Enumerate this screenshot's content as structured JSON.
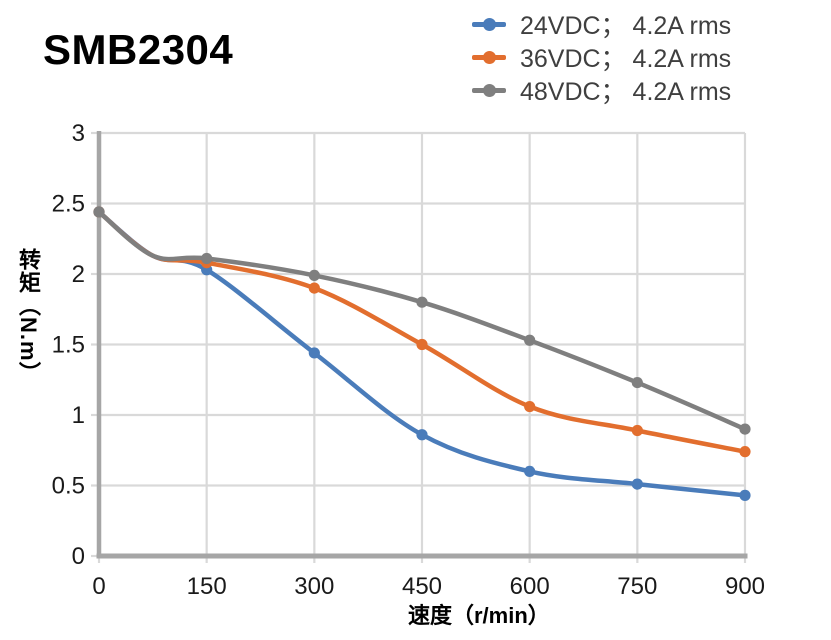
{
  "title": "SMB2304",
  "chart_data": {
    "type": "line",
    "title": "SMB2304",
    "xlabel": "速度（r/min）",
    "ylabel": "转矩（N.m）",
    "xlim": [
      0,
      900
    ],
    "ylim": [
      0,
      3
    ],
    "x_ticks": [
      0,
      150,
      300,
      450,
      600,
      750,
      900
    ],
    "x_tick_labels": [
      "0",
      "150",
      "300",
      "450",
      "600",
      "750",
      "900"
    ],
    "y_ticks": [
      0,
      0.5,
      1,
      1.5,
      2,
      2.5,
      3
    ],
    "y_tick_labels": [
      "0",
      "0.5",
      "1",
      "1.5",
      "2",
      "2.5",
      "3"
    ],
    "grid": true,
    "legend_position": "top-right",
    "x": [
      0,
      75,
      150,
      300,
      450,
      600,
      750,
      900
    ],
    "marker_x": [
      0,
      150,
      300,
      450,
      600,
      750,
      900
    ],
    "series": [
      {
        "name": "24VDC； 4.2A rms",
        "color": "#4a7cba",
        "values": [
          2.44,
          2.13,
          2.03,
          1.44,
          0.86,
          0.6,
          0.51,
          0.43
        ]
      },
      {
        "name": "36VDC； 4.2A rms",
        "color": "#e26e2e",
        "values": [
          2.44,
          2.13,
          2.08,
          1.9,
          1.5,
          1.06,
          0.89,
          0.74
        ]
      },
      {
        "name": "48VDC； 4.2A rms",
        "color": "#7f7f7f",
        "values": [
          2.44,
          2.13,
          2.11,
          1.99,
          1.8,
          1.53,
          1.23,
          0.9
        ]
      }
    ],
    "colors": {
      "grid": "#d9d9d9",
      "axis": "#a6a6a6",
      "tick_text": "#1a1a1a",
      "legend_text": "#3f3f3f",
      "title_text": "#000000"
    }
  }
}
